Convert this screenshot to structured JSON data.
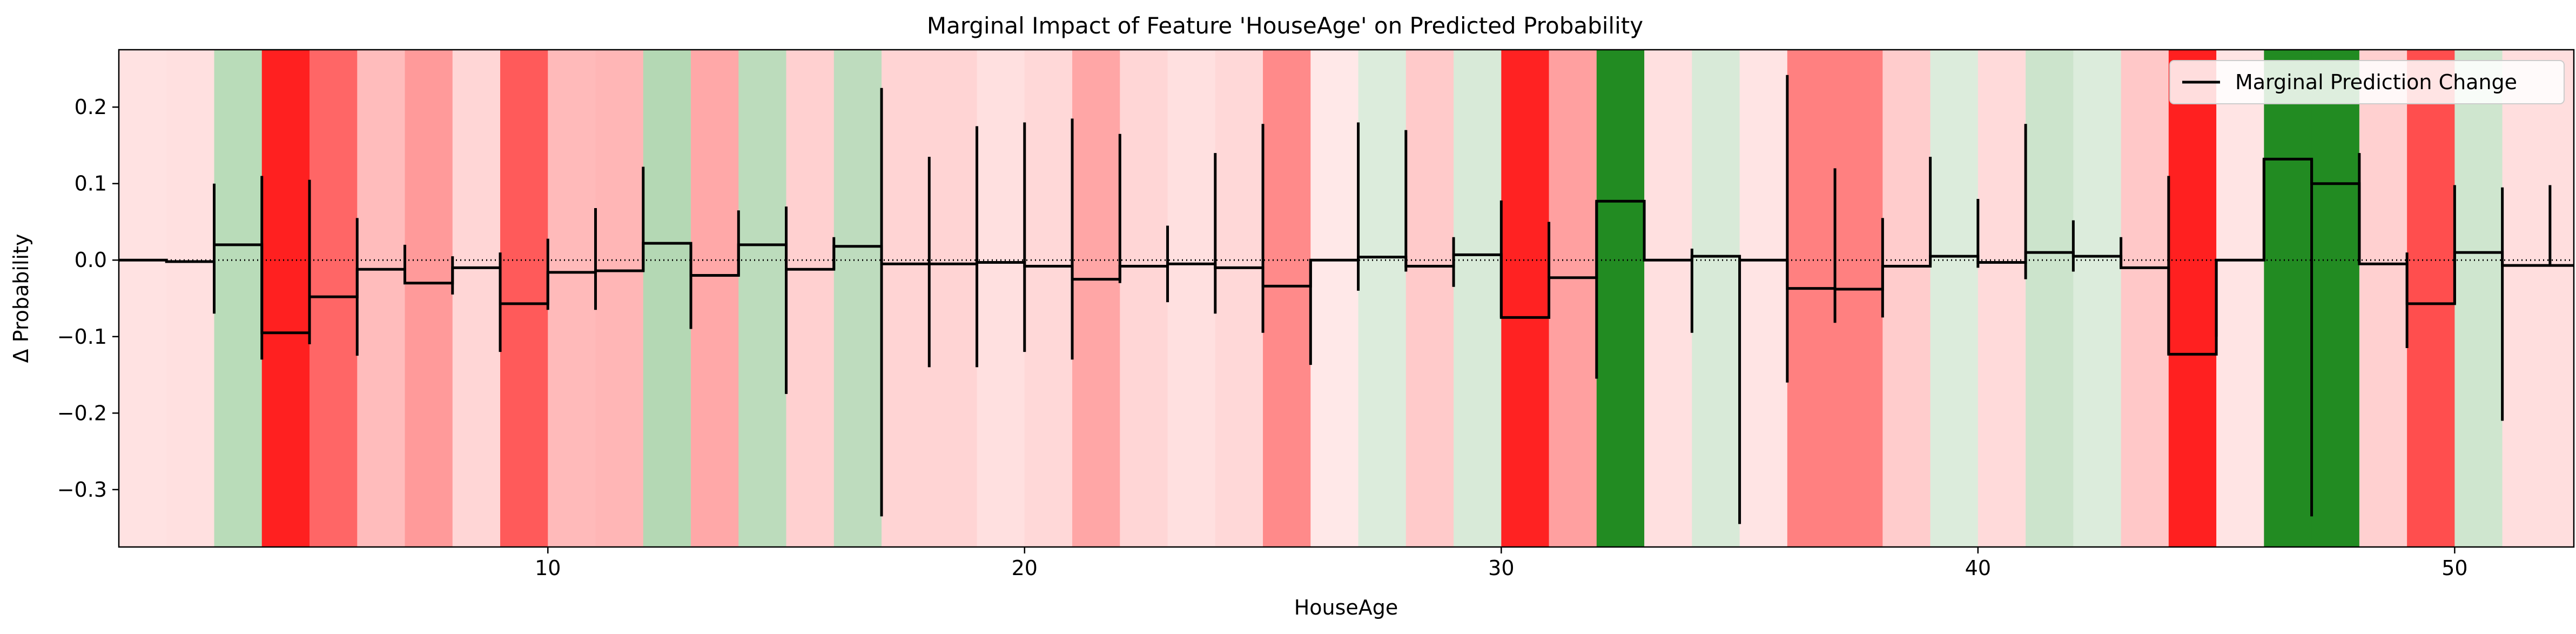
{
  "chart_data": {
    "type": "step",
    "title": "Marginal Impact of Feature 'HouseAge' on Predicted Probability",
    "xlabel": "HouseAge",
    "ylabel": "Δ Probability",
    "xlim": [
      1,
      52.5
    ],
    "ylim": [
      -0.375,
      0.275
    ],
    "x_ticks": [
      10,
      20,
      30,
      40,
      50
    ],
    "y_ticks": [
      0.2,
      0.1,
      0.0,
      -0.1,
      -0.2,
      -0.3
    ],
    "y_tick_labels": [
      "0.2",
      "0.1",
      "0.0",
      "−0.1",
      "−0.2",
      "−0.3"
    ],
    "x_tick_labels": [
      "10",
      "20",
      "30",
      "40",
      "50"
    ],
    "legend": {
      "placement": "top-right",
      "entries": [
        "Marginal Prediction Change"
      ]
    },
    "zero_line": "dotted",
    "grid": false,
    "background_bands": "colored by marginal change per bin (green = positive, red = negative, intensity = magnitude)",
    "bins": [
      {
        "x0": 1,
        "x1": 2,
        "value": 0.0,
        "err_low": 0.0,
        "err_high": 0.0
      },
      {
        "x0": 2,
        "x1": 3,
        "value": -0.002,
        "err_low": -0.002,
        "err_high": -0.002
      },
      {
        "x0": 3,
        "x1": 4,
        "value": 0.02,
        "err_low": -0.07,
        "err_high": 0.1
      },
      {
        "x0": 4,
        "x1": 5,
        "value": -0.095,
        "err_low": -0.13,
        "err_high": 0.11
      },
      {
        "x0": 5,
        "x1": 6,
        "value": -0.048,
        "err_low": -0.11,
        "err_high": 0.105
      },
      {
        "x0": 6,
        "x1": 7,
        "value": -0.012,
        "err_low": -0.125,
        "err_high": 0.055
      },
      {
        "x0": 7,
        "x1": 8,
        "value": -0.03,
        "err_low": -0.03,
        "err_high": 0.02
      },
      {
        "x0": 8,
        "x1": 9,
        "value": -0.01,
        "err_low": -0.045,
        "err_high": 0.005
      },
      {
        "x0": 9,
        "x1": 10,
        "value": -0.057,
        "err_low": -0.12,
        "err_high": 0.01
      },
      {
        "x0": 10,
        "x1": 11,
        "value": -0.016,
        "err_low": -0.065,
        "err_high": 0.028
      },
      {
        "x0": 11,
        "x1": 12,
        "value": -0.014,
        "err_low": -0.065,
        "err_high": 0.068
      },
      {
        "x0": 12,
        "x1": 13,
        "value": 0.022,
        "err_low": -0.015,
        "err_high": 0.122
      },
      {
        "x0": 13,
        "x1": 14,
        "value": -0.02,
        "err_low": -0.09,
        "err_high": 0.02
      },
      {
        "x0": 14,
        "x1": 15,
        "value": 0.02,
        "err_low": -0.02,
        "err_high": 0.065
      },
      {
        "x0": 15,
        "x1": 16,
        "value": -0.012,
        "err_low": -0.175,
        "err_high": 0.07
      },
      {
        "x0": 16,
        "x1": 17,
        "value": 0.018,
        "err_low": -0.012,
        "err_high": 0.03
      },
      {
        "x0": 17,
        "x1": 18,
        "value": -0.005,
        "err_low": -0.335,
        "err_high": 0.225
      },
      {
        "x0": 18,
        "x1": 19,
        "value": -0.005,
        "err_low": -0.14,
        "err_high": 0.135
      },
      {
        "x0": 19,
        "x1": 20,
        "value": -0.003,
        "err_low": -0.14,
        "err_high": 0.175
      },
      {
        "x0": 20,
        "x1": 21,
        "value": -0.008,
        "err_low": -0.12,
        "err_high": 0.18
      },
      {
        "x0": 21,
        "x1": 22,
        "value": -0.025,
        "err_low": -0.13,
        "err_high": 0.185
      },
      {
        "x0": 22,
        "x1": 23,
        "value": -0.008,
        "err_low": -0.03,
        "err_high": 0.165
      },
      {
        "x0": 23,
        "x1": 24,
        "value": -0.005,
        "err_low": -0.055,
        "err_high": 0.045
      },
      {
        "x0": 24,
        "x1": 25,
        "value": -0.01,
        "err_low": -0.07,
        "err_high": 0.14
      },
      {
        "x0": 25,
        "x1": 26,
        "value": -0.034,
        "err_low": -0.095,
        "err_high": 0.178
      },
      {
        "x0": 26,
        "x1": 27,
        "value": 0.0,
        "err_low": -0.137,
        "err_high": 0.0
      },
      {
        "x0": 27,
        "x1": 28,
        "value": 0.004,
        "err_low": -0.04,
        "err_high": 0.18
      },
      {
        "x0": 28,
        "x1": 29,
        "value": -0.008,
        "err_low": -0.015,
        "err_high": 0.17
      },
      {
        "x0": 29,
        "x1": 30,
        "value": 0.007,
        "err_low": -0.035,
        "err_high": 0.03
      },
      {
        "x0": 30,
        "x1": 31,
        "value": -0.075,
        "err_low": -0.075,
        "err_high": 0.078
      },
      {
        "x0": 31,
        "x1": 32,
        "value": -0.023,
        "err_low": -0.023,
        "err_high": 0.05
      },
      {
        "x0": 32,
        "x1": 33,
        "value": 0.077,
        "err_low": -0.155,
        "err_high": 0.077
      },
      {
        "x0": 33,
        "x1": 34,
        "value": 0.0,
        "err_low": 0.0,
        "err_high": 0.0
      },
      {
        "x0": 34,
        "x1": 35,
        "value": 0.005,
        "err_low": -0.095,
        "err_high": 0.015
      },
      {
        "x0": 35,
        "x1": 36,
        "value": 0.0,
        "err_low": -0.345,
        "err_high": 0.0
      },
      {
        "x0": 36,
        "x1": 37,
        "value": -0.037,
        "err_low": -0.16,
        "err_high": 0.242
      },
      {
        "x0": 37,
        "x1": 38,
        "value": -0.038,
        "err_low": -0.082,
        "err_high": 0.12
      },
      {
        "x0": 38,
        "x1": 39,
        "value": -0.008,
        "err_low": -0.075,
        "err_high": 0.055
      },
      {
        "x0": 39,
        "x1": 40,
        "value": 0.005,
        "err_low": -0.005,
        "err_high": 0.135
      },
      {
        "x0": 40,
        "x1": 41,
        "value": -0.003,
        "err_low": -0.01,
        "err_high": 0.08
      },
      {
        "x0": 41,
        "x1": 42,
        "value": 0.01,
        "err_low": -0.025,
        "err_high": 0.178
      },
      {
        "x0": 42,
        "x1": 43,
        "value": 0.005,
        "err_low": -0.015,
        "err_high": 0.052
      },
      {
        "x0": 43,
        "x1": 44,
        "value": -0.01,
        "err_low": -0.01,
        "err_high": 0.03
      },
      {
        "x0": 44,
        "x1": 45,
        "value": -0.123,
        "err_low": -0.123,
        "err_high": 0.11
      },
      {
        "x0": 45,
        "x1": 46,
        "value": 0.0,
        "err_low": -0.1,
        "err_high": 0.0
      },
      {
        "x0": 46,
        "x1": 47,
        "value": 0.132,
        "err_low": 0.0,
        "err_high": 0.132
      },
      {
        "x0": 47,
        "x1": 48,
        "value": 0.1,
        "err_low": -0.335,
        "err_high": 0.132
      },
      {
        "x0": 48,
        "x1": 49,
        "value": -0.005,
        "err_low": -0.003,
        "err_high": 0.14
      },
      {
        "x0": 49,
        "x1": 50,
        "value": -0.057,
        "err_low": -0.115,
        "err_high": 0.01
      },
      {
        "x0": 50,
        "x1": 51,
        "value": 0.01,
        "err_low": -0.057,
        "err_high": 0.098
      },
      {
        "x0": 51,
        "x1": 52,
        "value": -0.007,
        "err_low": -0.21,
        "err_high": 0.095
      },
      {
        "x0": 52,
        "x1": 52.5,
        "value": -0.007,
        "err_low": -0.007,
        "err_high": 0.098
      }
    ],
    "band_colors": [
      "#ffe2e2",
      "#ffe0e0",
      "#b9dcb9",
      "#ff2020",
      "#ff6666",
      "#ffbcbc",
      "#ff9a9a",
      "#ffd6d6",
      "#ff5a5a",
      "#ffbaba",
      "#ffb6b6",
      "#b4d8b4",
      "#ffa8a8",
      "#bcdcbc",
      "#ffd0d0",
      "#bedcbe",
      "#ffd4d4",
      "#ffd4d4",
      "#ffe0e0",
      "#ffd8d8",
      "#ffa6a6",
      "#ffd6d6",
      "#ffe0e0",
      "#ffd8d8",
      "#ff8a8a",
      "#ffe8e8",
      "#dcecdc",
      "#ffcaca",
      "#d8ead8",
      "#ff2222",
      "#ffa0a0",
      "#228b22",
      "#ffe0e0",
      "#d8ead8",
      "#ffe4e4",
      "#ff8080",
      "#ff8080",
      "#ffcccc",
      "#dcecdc",
      "#ffdada",
      "#cce4cc",
      "#dcecdc",
      "#ffc8c8",
      "#ff2020",
      "#ffe4e4",
      "#228b22",
      "#228b22",
      "#ffd0d0",
      "#ff4e4e",
      "#cfe6cf",
      "#ffdede",
      "#ffdede"
    ]
  }
}
